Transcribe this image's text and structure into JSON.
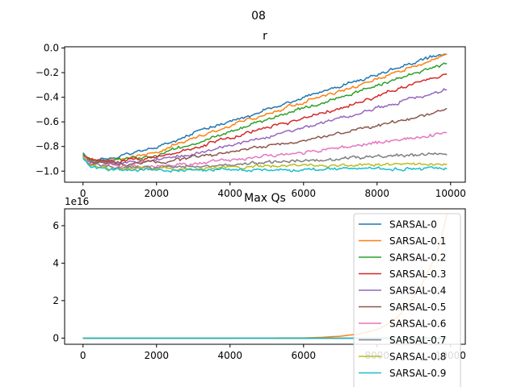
{
  "figure": {
    "suptitle": "08"
  },
  "chart_data": [
    {
      "type": "line",
      "title": "r",
      "xlabel": "",
      "ylabel": "",
      "xlim": [
        -500,
        10400
      ],
      "ylim": [
        -1.09,
        0.01
      ],
      "xticks": [
        0,
        2000,
        4000,
        6000,
        8000,
        10000
      ],
      "xtick_labels": [
        "0",
        "2000",
        "4000",
        "6000",
        "8000",
        "10000"
      ],
      "yticks": [
        0.0,
        -0.2,
        -0.4,
        -0.6,
        -0.8,
        -1.0
      ],
      "ytick_labels": [
        "0.0",
        "−0.2",
        "−0.4",
        "−0.6",
        "−0.8",
        "−1.0"
      ],
      "grid": false,
      "series": [
        {
          "name": "SARSAL-0",
          "color": "#1f77b4",
          "x": [
            0,
            200,
            1000,
            2000,
            3000,
            4000,
            5000,
            6000,
            7000,
            8000,
            9000,
            9900
          ],
          "values": [
            -0.85,
            -0.91,
            -0.89,
            -0.8,
            -0.69,
            -0.6,
            -0.5,
            -0.4,
            -0.31,
            -0.22,
            -0.12,
            -0.04
          ]
        },
        {
          "name": "SARSAL-0.1",
          "color": "#ff7f0e",
          "x": [
            0,
            200,
            1000,
            2000,
            3000,
            4000,
            5000,
            6000,
            7000,
            8000,
            9000,
            9900
          ],
          "values": [
            -0.86,
            -0.91,
            -0.91,
            -0.84,
            -0.73,
            -0.63,
            -0.53,
            -0.44,
            -0.35,
            -0.25,
            -0.15,
            -0.06
          ]
        },
        {
          "name": "SARSAL-0.2",
          "color": "#2ca02c",
          "x": [
            0,
            200,
            1000,
            2000,
            3000,
            4000,
            5000,
            6000,
            7000,
            8000,
            9000,
            9900
          ],
          "values": [
            -0.86,
            -0.91,
            -0.91,
            -0.87,
            -0.78,
            -0.68,
            -0.58,
            -0.49,
            -0.4,
            -0.31,
            -0.21,
            -0.13
          ]
        },
        {
          "name": "SARSAL-0.3",
          "color": "#d62728",
          "x": [
            0,
            200,
            1000,
            2000,
            3000,
            4000,
            5000,
            6000,
            7000,
            8000,
            9000,
            9900
          ],
          "values": [
            -0.87,
            -0.91,
            -0.92,
            -0.89,
            -0.81,
            -0.73,
            -0.65,
            -0.57,
            -0.49,
            -0.39,
            -0.29,
            -0.21
          ]
        },
        {
          "name": "SARSAL-0.4",
          "color": "#9467bd",
          "x": [
            0,
            200,
            1000,
            2000,
            3000,
            4000,
            5000,
            6000,
            7000,
            8000,
            9000,
            9900
          ],
          "values": [
            -0.87,
            -0.92,
            -0.93,
            -0.91,
            -0.86,
            -0.79,
            -0.72,
            -0.65,
            -0.57,
            -0.49,
            -0.41,
            -0.33
          ]
        },
        {
          "name": "SARSAL-0.5",
          "color": "#8c564b",
          "x": [
            0,
            200,
            1000,
            2000,
            3000,
            4000,
            5000,
            6000,
            7000,
            8000,
            9000,
            9900
          ],
          "values": [
            -0.88,
            -0.93,
            -0.94,
            -0.93,
            -0.89,
            -0.84,
            -0.8,
            -0.75,
            -0.69,
            -0.63,
            -0.57,
            -0.5
          ]
        },
        {
          "name": "SARSAL-0.6",
          "color": "#e377c2",
          "x": [
            0,
            200,
            1000,
            2000,
            3000,
            4000,
            5000,
            6000,
            7000,
            8000,
            9000,
            9900
          ],
          "values": [
            -0.88,
            -0.94,
            -0.96,
            -0.96,
            -0.94,
            -0.91,
            -0.88,
            -0.85,
            -0.81,
            -0.77,
            -0.73,
            -0.69
          ]
        },
        {
          "name": "SARSAL-0.7",
          "color": "#7f7f7f",
          "x": [
            0,
            200,
            1000,
            2000,
            3000,
            4000,
            5000,
            6000,
            7000,
            8000,
            9000,
            9900
          ],
          "values": [
            -0.89,
            -0.95,
            -0.97,
            -0.97,
            -0.96,
            -0.95,
            -0.93,
            -0.91,
            -0.9,
            -0.88,
            -0.87,
            -0.86
          ]
        },
        {
          "name": "SARSAL-0.8",
          "color": "#bcbd22",
          "x": [
            0,
            200,
            1000,
            2000,
            3000,
            4000,
            5000,
            6000,
            7000,
            8000,
            9000,
            9900
          ],
          "values": [
            -0.89,
            -0.96,
            -0.98,
            -0.98,
            -0.98,
            -0.97,
            -0.96,
            -0.96,
            -0.95,
            -0.95,
            -0.94,
            -0.94
          ]
        },
        {
          "name": "SARSAL-0.9",
          "color": "#17becf",
          "x": [
            0,
            200,
            1000,
            2000,
            3000,
            4000,
            5000,
            6000,
            7000,
            8000,
            9000,
            9900
          ],
          "values": [
            -0.9,
            -0.97,
            -0.99,
            -0.99,
            -0.99,
            -0.99,
            -0.99,
            -0.99,
            -0.98,
            -0.98,
            -0.98,
            -0.98
          ]
        }
      ]
    },
    {
      "type": "line",
      "title": "Max Qs",
      "xlabel": "",
      "ylabel": "",
      "offset_label": "1e16",
      "xlim": [
        -500,
        10400
      ],
      "ylim": [
        -0.33,
        6.9
      ],
      "xticks": [
        0,
        2000,
        4000,
        6000,
        8000,
        10000
      ],
      "xtick_labels": [
        "0",
        "2000",
        "4000",
        "6000",
        "8000",
        "10000"
      ],
      "yticks": [
        0,
        2,
        4,
        6
      ],
      "ytick_labels": [
        "0",
        "2",
        "4",
        "6"
      ],
      "grid": false,
      "legend": {
        "position": "right"
      },
      "series": [
        {
          "name": "SARSAL-0",
          "color": "#1f77b4",
          "x": [
            0,
            2000,
            4000,
            6000,
            8000,
            9900
          ],
          "values": [
            0,
            0,
            0,
            0,
            0,
            0
          ]
        },
        {
          "name": "SARSAL-0.1",
          "color": "#ff7f0e",
          "x": [
            0,
            2000,
            4000,
            6000,
            6500,
            7000,
            7500,
            8000,
            8300,
            8600,
            8900,
            9200,
            9500,
            9700,
            9900
          ],
          "values": [
            0,
            0,
            0,
            0.01,
            0.04,
            0.1,
            0.22,
            0.45,
            0.75,
            1.2,
            1.9,
            2.8,
            4.0,
            5.0,
            6.6
          ]
        },
        {
          "name": "SARSAL-0.2",
          "color": "#2ca02c",
          "x": [
            0,
            2000,
            4000,
            6000,
            8000,
            9900
          ],
          "values": [
            0,
            0,
            0,
            0,
            0,
            0
          ]
        },
        {
          "name": "SARSAL-0.3",
          "color": "#d62728",
          "x": [
            0,
            2000,
            4000,
            6000,
            8000,
            9900
          ],
          "values": [
            0,
            0,
            0,
            0,
            0,
            0
          ]
        },
        {
          "name": "SARSAL-0.4",
          "color": "#9467bd",
          "x": [
            0,
            2000,
            4000,
            6000,
            8000,
            9900
          ],
          "values": [
            0,
            0,
            0,
            0,
            0,
            0
          ]
        },
        {
          "name": "SARSAL-0.5",
          "color": "#8c564b",
          "x": [
            0,
            2000,
            4000,
            6000,
            8000,
            9900
          ],
          "values": [
            0,
            0,
            0,
            0,
            0,
            0
          ]
        },
        {
          "name": "SARSAL-0.6",
          "color": "#e377c2",
          "x": [
            0,
            2000,
            4000,
            6000,
            8000,
            9900
          ],
          "values": [
            0,
            0,
            0,
            0,
            0,
            0
          ]
        },
        {
          "name": "SARSAL-0.7",
          "color": "#7f7f7f",
          "x": [
            0,
            2000,
            4000,
            6000,
            8000,
            9900
          ],
          "values": [
            0,
            0,
            0,
            0,
            0,
            0
          ]
        },
        {
          "name": "SARSAL-0.8",
          "color": "#bcbd22",
          "x": [
            0,
            2000,
            4000,
            6000,
            8000,
            9900
          ],
          "values": [
            0,
            0,
            0,
            0,
            0,
            0
          ]
        },
        {
          "name": "SARSAL-0.9",
          "color": "#17becf",
          "x": [
            0,
            2000,
            4000,
            6000,
            8000,
            9900
          ],
          "values": [
            0,
            0,
            0,
            0,
            0,
            0
          ]
        }
      ]
    }
  ]
}
